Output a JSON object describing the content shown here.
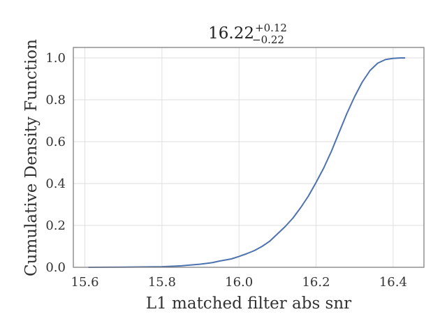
{
  "chart_data": {
    "type": "line",
    "title": {
      "value": "16.22",
      "upper": "+0.12",
      "lower": "−0.22"
    },
    "xlabel": "L1 matched filter abs snr",
    "ylabel": "Cumulative Density Function",
    "xlim": [
      15.57,
      16.48
    ],
    "ylim": [
      0.0,
      1.05
    ],
    "xticks": [
      15.6,
      15.8,
      16.0,
      16.2,
      16.4
    ],
    "xtick_labels": [
      "15.6",
      "15.8",
      "16.0",
      "16.2",
      "16.4"
    ],
    "yticks": [
      0.0,
      0.2,
      0.4,
      0.6,
      0.8,
      1.0
    ],
    "ytick_labels": [
      "0.0",
      "0.2",
      "0.4",
      "0.6",
      "0.8",
      "1.0"
    ],
    "grid": true,
    "series": [
      {
        "color": "#4c72b0",
        "x": [
          15.61,
          15.7,
          15.8,
          15.85,
          15.9,
          15.93,
          15.95,
          15.98,
          16.0,
          16.02,
          16.04,
          16.06,
          16.08,
          16.1,
          16.12,
          16.14,
          16.16,
          16.18,
          16.2,
          16.22,
          16.24,
          16.26,
          16.28,
          16.3,
          16.32,
          16.34,
          16.36,
          16.38,
          16.4,
          16.42,
          16.43
        ],
        "y": [
          0.0,
          0.001,
          0.003,
          0.007,
          0.015,
          0.022,
          0.03,
          0.04,
          0.052,
          0.065,
          0.08,
          0.1,
          0.125,
          0.16,
          0.195,
          0.235,
          0.285,
          0.34,
          0.405,
          0.475,
          0.555,
          0.645,
          0.735,
          0.815,
          0.885,
          0.94,
          0.975,
          0.992,
          0.998,
          1.0,
          1.0
        ]
      }
    ]
  }
}
